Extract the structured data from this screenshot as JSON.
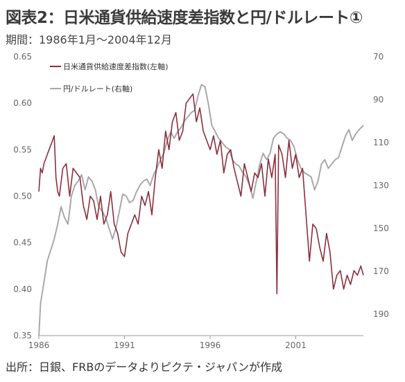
{
  "title": "図表2：日米通貨供給速度差指数と円/ドルレート①",
  "subtitle": "期間：1986年1月～2004年12月",
  "source": "出所：日銀、FRBのデータよりピクテ・ジャパンが作成",
  "chart_data": {
    "type": "line",
    "xlim": [
      1986,
      2004.95
    ],
    "x_ticks": [
      "1986",
      "1991",
      "1996",
      "2001"
    ],
    "ylim_left": [
      0.35,
      0.65
    ],
    "left_ticks": [
      "0.65",
      "0.60",
      "0.55",
      "0.50",
      "0.45",
      "0.40",
      "0.35"
    ],
    "ylim_right_top": 70,
    "ylim_right_bottom": 200,
    "right_ticks": [
      "70",
      "90",
      "110",
      "130",
      "150",
      "170",
      "190"
    ],
    "legend_position": "top-left",
    "grid": false,
    "series": [
      {
        "name": "日米通貨供給速度差指数(左軸)",
        "axis": "left",
        "color": "#8b2e3a",
        "x": [
          1986.0,
          1986.1,
          1986.2,
          1986.3,
          1986.5,
          1986.6,
          1986.8,
          1986.9,
          1987.0,
          1987.1,
          1987.2,
          1987.4,
          1987.6,
          1987.8,
          1988.0,
          1988.2,
          1988.4,
          1988.6,
          1988.8,
          1989.0,
          1989.2,
          1989.4,
          1989.6,
          1989.8,
          1990.0,
          1990.2,
          1990.4,
          1990.6,
          1990.8,
          1991.0,
          1991.2,
          1991.4,
          1991.6,
          1991.8,
          1992.0,
          1992.2,
          1992.4,
          1992.6,
          1992.8,
          1993.0,
          1993.2,
          1993.4,
          1993.6,
          1993.8,
          1994.0,
          1994.2,
          1994.4,
          1994.6,
          1994.8,
          1995.0,
          1995.2,
          1995.4,
          1995.6,
          1995.8,
          1996.0,
          1996.2,
          1996.4,
          1996.6,
          1996.8,
          1997.0,
          1997.2,
          1997.4,
          1997.6,
          1997.8,
          1998.0,
          1998.2,
          1998.4,
          1998.6,
          1998.8,
          1999.0,
          1999.2,
          1999.4,
          1999.6,
          1999.8,
          1999.9,
          2000.0,
          2000.2,
          2000.4,
          2000.6,
          2000.8,
          2001.0,
          2001.2,
          2001.4,
          2001.6,
          2001.8,
          2002.0,
          2002.2,
          2002.4,
          2002.6,
          2002.8,
          2003.0,
          2003.2,
          2003.4,
          2003.6,
          2003.8,
          2004.0,
          2004.2,
          2004.4,
          2004.6,
          2004.8,
          2004.95
        ],
        "y": [
          0.505,
          0.53,
          0.525,
          0.535,
          0.545,
          0.55,
          0.56,
          0.565,
          0.52,
          0.505,
          0.5,
          0.53,
          0.535,
          0.5,
          0.53,
          0.525,
          0.52,
          0.49,
          0.475,
          0.5,
          0.495,
          0.475,
          0.5,
          0.47,
          0.48,
          0.505,
          0.47,
          0.46,
          0.44,
          0.435,
          0.46,
          0.47,
          0.48,
          0.47,
          0.5,
          0.49,
          0.505,
          0.48,
          0.52,
          0.55,
          0.53,
          0.57,
          0.55,
          0.58,
          0.59,
          0.56,
          0.57,
          0.6,
          0.605,
          0.61,
          0.58,
          0.595,
          0.57,
          0.56,
          0.55,
          0.565,
          0.545,
          0.56,
          0.525,
          0.545,
          0.55,
          0.53,
          0.515,
          0.5,
          0.535,
          0.52,
          0.505,
          0.525,
          0.52,
          0.535,
          0.5,
          0.54,
          0.52,
          0.545,
          0.395,
          0.555,
          0.545,
          0.52,
          0.56,
          0.53,
          0.545,
          0.52,
          0.53,
          0.48,
          0.43,
          0.47,
          0.465,
          0.445,
          0.43,
          0.46,
          0.44,
          0.4,
          0.415,
          0.42,
          0.4,
          0.415,
          0.405,
          0.42,
          0.415,
          0.425,
          0.415
        ],
        "y_note": ""
      },
      {
        "name": "円/ドルレート(右軸)",
        "axis": "right",
        "color": "#a8a8a8",
        "x": [
          1986.0,
          1986.1,
          1986.3,
          1986.5,
          1986.7,
          1986.9,
          1987.1,
          1987.3,
          1987.5,
          1987.7,
          1987.9,
          1988.1,
          1988.3,
          1988.5,
          1988.7,
          1988.9,
          1989.1,
          1989.3,
          1989.5,
          1989.7,
          1989.9,
          1990.1,
          1990.3,
          1990.5,
          1990.7,
          1990.9,
          1991.1,
          1991.3,
          1991.5,
          1991.7,
          1991.9,
          1992.1,
          1992.3,
          1992.5,
          1992.7,
          1992.9,
          1993.1,
          1993.3,
          1993.5,
          1993.7,
          1993.9,
          1994.1,
          1994.3,
          1994.5,
          1994.7,
          1994.9,
          1995.1,
          1995.3,
          1995.5,
          1995.7,
          1995.9,
          1996.1,
          1996.3,
          1996.5,
          1996.7,
          1996.9,
          1997.1,
          1997.3,
          1997.5,
          1997.7,
          1997.9,
          1998.1,
          1998.3,
          1998.5,
          1998.7,
          1998.9,
          1999.1,
          1999.3,
          1999.5,
          1999.7,
          1999.9,
          2000.1,
          2000.3,
          2000.5,
          2000.7,
          2000.9,
          2001.1,
          2001.3,
          2001.5,
          2001.7,
          2001.9,
          2002.1,
          2002.3,
          2002.5,
          2002.7,
          2002.9,
          2003.1,
          2003.3,
          2003.5,
          2003.7,
          2003.9,
          2004.1,
          2004.3,
          2004.5,
          2004.7,
          2004.95
        ],
        "y": [
          200,
          185,
          175,
          165,
          160,
          155,
          148,
          140,
          145,
          148,
          135,
          130,
          128,
          125,
          132,
          126,
          128,
          132,
          140,
          142,
          145,
          150,
          155,
          150,
          142,
          134,
          135,
          138,
          137,
          133,
          130,
          128,
          127,
          130,
          125,
          122,
          118,
          115,
          109,
          105,
          108,
          105,
          103,
          100,
          98,
          96,
          95,
          88,
          83,
          84,
          92,
          102,
          105,
          108,
          110,
          112,
          113,
          118,
          120,
          121,
          124,
          126,
          130,
          136,
          128,
          120,
          115,
          118,
          115,
          108,
          106,
          105,
          106,
          108,
          109,
          112,
          118,
          122,
          124,
          125,
          126,
          132,
          128,
          120,
          118,
          122,
          120,
          118,
          117,
          112,
          107,
          104,
          109,
          106,
          104,
          102
        ],
        "y_note": ""
      }
    ]
  }
}
